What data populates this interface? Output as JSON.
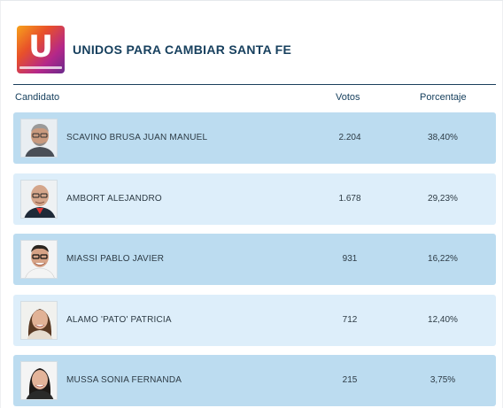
{
  "party": {
    "logo_letter": "U",
    "name": "UNIDOS PARA CAMBIAR SANTA FE",
    "colors": {
      "brand_gradient": [
        "#f7a21b",
        "#e8502a",
        "#b4278a",
        "#6a2a8c"
      ],
      "title": "#17405e"
    }
  },
  "table": {
    "headers": {
      "candidate": "Candidato",
      "votes": "Votos",
      "percent": "Porcentaje"
    },
    "rows": [
      {
        "name": "SCAVINO BRUSA JUAN MANUEL",
        "votes": "2.204",
        "percent": "38,40%",
        "shade": "dark",
        "photo": "man-gray-hair-glasses"
      },
      {
        "name": "AMBORT ALEJANDRO",
        "votes": "1.678",
        "percent": "29,23%",
        "shade": "light",
        "photo": "man-bald-glasses"
      },
      {
        "name": "MIASSI PABLO JAVIER",
        "votes": "931",
        "percent": "16,22%",
        "shade": "dark",
        "photo": "man-dark-hair-glasses"
      },
      {
        "name": "ALAMO 'PATO' PATRICIA",
        "votes": "712",
        "percent": "12,40%",
        "shade": "light",
        "photo": "woman-brown-hair"
      },
      {
        "name": "MUSSA SONIA FERNANDA",
        "votes": "215",
        "percent": "3,75%",
        "shade": "dark",
        "photo": "woman-dark-hair"
      }
    ],
    "colors": {
      "row_dark": "#bcdcf0",
      "row_light": "#ddeefa",
      "text": "#2d3b45"
    }
  }
}
